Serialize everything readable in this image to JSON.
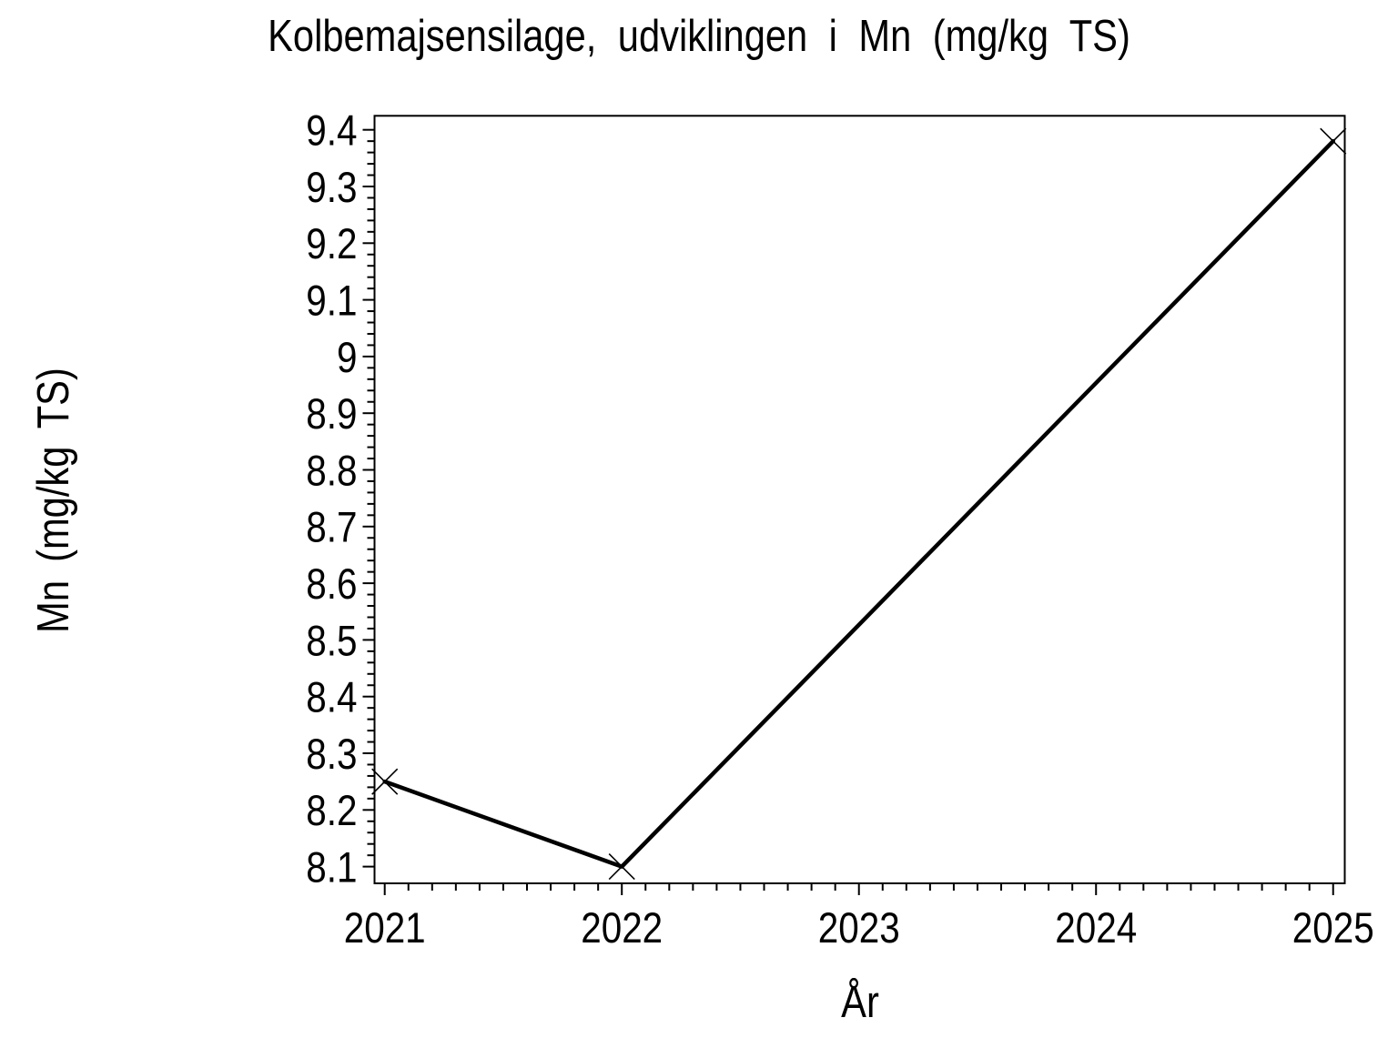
{
  "chart_data": {
    "type": "line",
    "title": "Kolbemajsensilage, udviklingen i Mn (mg/kg TS)",
    "xlabel": "År",
    "ylabel": "Mn (mg/kg TS)",
    "x": [
      2021,
      2022,
      2025
    ],
    "y": [
      8.25,
      8.1,
      9.38
    ],
    "marker": "x",
    "grid": false,
    "legend": null,
    "line_color": "#000000",
    "marker_color": "#000000",
    "text_color": "#000000",
    "background": "#ffffff",
    "axes": {
      "xlim": [
        2020.957,
        2025.049
      ],
      "ylim": [
        8.0705,
        9.4247
      ],
      "x_tick_values": [
        2021,
        2022,
        2023,
        2024,
        2025
      ],
      "x_tick_labels": [
        "2021",
        "2022",
        "2023",
        "2024",
        "2025"
      ],
      "x_minor_divisions": 10,
      "y_tick_values": [
        9.4,
        9.3,
        9.2,
        9.1,
        9.0,
        8.9,
        8.8,
        8.7,
        8.6,
        8.5,
        8.4,
        8.3,
        8.2,
        8.1
      ],
      "y_tick_labels": [
        "9.4",
        "9.3",
        "9.2",
        "9.1",
        "9",
        "8.9",
        "8.8",
        "8.7",
        "8.6",
        "8.5",
        "8.4",
        "8.3",
        "8.2",
        "8.1"
      ],
      "y_minor_step": 0.02,
      "y_minor_range": [
        8.1,
        9.4
      ]
    }
  }
}
